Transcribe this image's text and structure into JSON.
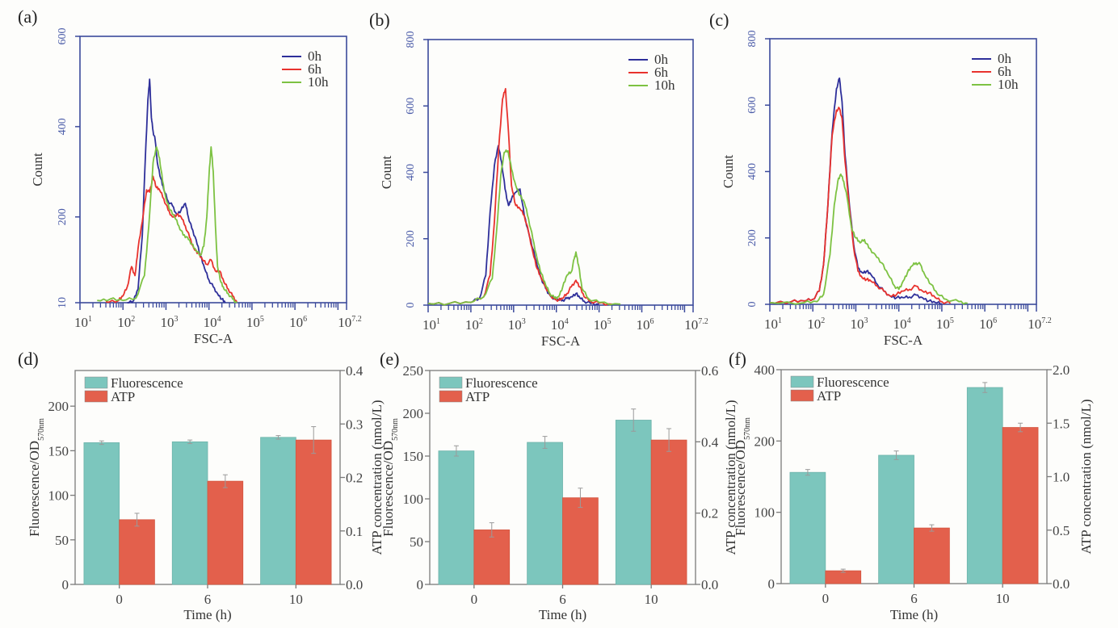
{
  "figure": {
    "panels": [
      "(a)",
      "(b)",
      "(c)",
      "(d)",
      "(e)",
      "(f)"
    ]
  },
  "chart_data": [
    {
      "id": "a",
      "label": "(a)",
      "type": "line",
      "xlabel": "FSC-A",
      "ylabel": "Count",
      "xscale": "log10",
      "xlim_log10": [
        1,
        7.2
      ],
      "xtick_labels": [
        "10^1",
        "10^2",
        "10^3",
        "10^4",
        "10^5",
        "10^6",
        "10^7.2"
      ],
      "ylim": [
        10,
        600
      ],
      "ytick_labels": [
        "10",
        "200",
        "400",
        "600"
      ],
      "yticks": [
        10,
        200,
        400,
        600
      ],
      "legend": [
        "0h",
        "6h",
        "10h"
      ],
      "legend_position": "top-right",
      "series": [
        {
          "name": "0h",
          "color": "#2e2f9a",
          "x_log10": [
            2.1,
            2.25,
            2.35,
            2.45,
            2.52,
            2.58,
            2.62,
            2.66,
            2.7,
            2.75,
            2.8,
            2.88,
            2.95,
            3.05,
            3.15,
            3.25,
            3.35,
            3.45,
            3.52,
            3.6,
            3.7,
            3.8,
            3.9,
            4.0,
            4.1,
            4.2,
            4.3,
            4.38
          ],
          "y": [
            10,
            15,
            40,
            160,
            330,
            460,
            505,
            420,
            390,
            370,
            320,
            285,
            260,
            235,
            225,
            205,
            215,
            230,
            200,
            175,
            150,
            115,
            85,
            60,
            45,
            30,
            18,
            10
          ]
        },
        {
          "name": "6h",
          "color": "#e8322d",
          "x_log10": [
            1.6,
            1.9,
            2.0,
            2.1,
            2.2,
            2.28,
            2.35,
            2.45,
            2.55,
            2.62,
            2.7,
            2.78,
            2.85,
            2.95,
            3.05,
            3.15,
            3.25,
            3.35,
            3.45,
            3.55,
            3.65,
            3.75,
            3.85,
            3.95,
            4.05,
            4.15,
            4.25,
            4.35,
            4.45,
            4.55,
            4.65
          ],
          "y": [
            12,
            15,
            25,
            45,
            90,
            70,
            130,
            190,
            260,
            255,
            290,
            265,
            260,
            240,
            215,
            200,
            205,
            200,
            180,
            155,
            130,
            120,
            105,
            95,
            105,
            80,
            80,
            55,
            40,
            25,
            12
          ]
        },
        {
          "name": "10h",
          "color": "#7dc242",
          "x_log10": [
            1.4,
            1.7,
            2.0,
            2.3,
            2.5,
            2.6,
            2.7,
            2.78,
            2.85,
            2.92,
            3.0,
            3.1,
            3.2,
            3.3,
            3.4,
            3.5,
            3.6,
            3.7,
            3.8,
            3.88,
            3.95,
            4.0,
            4.05,
            4.1,
            4.15,
            4.2,
            4.28,
            4.35,
            4.45,
            4.55,
            4.65
          ],
          "y": [
            15,
            18,
            15,
            20,
            70,
            180,
            320,
            355,
            330,
            280,
            240,
            215,
            200,
            180,
            160,
            155,
            140,
            125,
            115,
            135,
            200,
            290,
            355,
            300,
            180,
            90,
            55,
            40,
            30,
            18,
            10
          ]
        }
      ]
    },
    {
      "id": "b",
      "label": "(b)",
      "type": "line",
      "xlabel": "FSC-A",
      "ylabel": "Count",
      "xscale": "log10",
      "xlim_log10": [
        1,
        7.2
      ],
      "xtick_labels": [
        "10^1",
        "10^2",
        "10^3",
        "10^4",
        "10^5",
        "10^6",
        "10^7.2"
      ],
      "ylim": [
        0,
        800
      ],
      "ytick_labels": [
        "0",
        "200",
        "400",
        "600",
        "800"
      ],
      "yticks": [
        0,
        200,
        400,
        600,
        800
      ],
      "legend": [
        "0h",
        "6h",
        "10h"
      ],
      "legend_position": "top-right",
      "series": [
        {
          "name": "0h",
          "color": "#2e2f9a",
          "x_log10": [
            1.0,
            1.5,
            2.0,
            2.2,
            2.35,
            2.45,
            2.55,
            2.64,
            2.72,
            2.8,
            2.88,
            2.95,
            3.05,
            3.15,
            3.25,
            3.35,
            3.45,
            3.55,
            3.65,
            3.75,
            3.85,
            3.95,
            4.05,
            4.15,
            4.25,
            4.35,
            4.46,
            4.55,
            4.65,
            4.8,
            5.0
          ],
          "y": [
            5,
            5,
            8,
            20,
            90,
            280,
            420,
            480,
            430,
            350,
            300,
            320,
            340,
            350,
            270,
            220,
            170,
            120,
            80,
            50,
            30,
            20,
            15,
            15,
            20,
            25,
            35,
            22,
            12,
            5,
            3
          ]
        },
        {
          "name": "6h",
          "color": "#e8322d",
          "x_log10": [
            1.0,
            1.5,
            2.0,
            2.3,
            2.45,
            2.55,
            2.65,
            2.74,
            2.81,
            2.88,
            2.95,
            3.05,
            3.15,
            3.25,
            3.35,
            3.45,
            3.55,
            3.65,
            3.75,
            3.85,
            3.95,
            4.05,
            4.15,
            4.25,
            4.35,
            4.46,
            4.55,
            4.65,
            4.8,
            5.0,
            5.3
          ],
          "y": [
            5,
            5,
            8,
            25,
            90,
            250,
            470,
            620,
            652,
            520,
            360,
            300,
            290,
            270,
            220,
            160,
            110,
            80,
            55,
            30,
            20,
            15,
            20,
            35,
            55,
            75,
            55,
            25,
            12,
            6,
            3
          ]
        },
        {
          "name": "10h",
          "color": "#7dc242",
          "x_log10": [
            1.0,
            1.5,
            2.0,
            2.3,
            2.5,
            2.6,
            2.7,
            2.78,
            2.87,
            2.95,
            3.05,
            3.15,
            3.25,
            3.35,
            3.45,
            3.55,
            3.65,
            3.75,
            3.85,
            3.95,
            4.05,
            4.15,
            4.25,
            4.35,
            4.42,
            4.46,
            4.52,
            4.6,
            4.75,
            5.0,
            5.5
          ],
          "y": [
            5,
            5,
            8,
            25,
            80,
            220,
            390,
            460,
            465,
            410,
            360,
            330,
            310,
            260,
            200,
            140,
            95,
            60,
            35,
            22,
            25,
            55,
            90,
            100,
            140,
            160,
            120,
            50,
            20,
            8,
            3
          ]
        }
      ]
    },
    {
      "id": "c",
      "label": "(c)",
      "type": "line",
      "xlabel": "FSC-A",
      "ylabel": "Count",
      "xscale": "log10",
      "xlim_log10": [
        1,
        7.2
      ],
      "xtick_labels": [
        "10^1",
        "10^2",
        "10^3",
        "10^4",
        "10^5",
        "10^6",
        "10^7.2"
      ],
      "ylim": [
        0,
        800
      ],
      "ytick_labels": [
        "0",
        "200",
        "400",
        "600",
        "800"
      ],
      "yticks": [
        0,
        200,
        400,
        600,
        800
      ],
      "legend": [
        "0h",
        "6h",
        "10h"
      ],
      "legend_position": "top-right",
      "series": [
        {
          "name": "0h",
          "color": "#2e2f9a",
          "x_log10": [
            1.0,
            1.5,
            1.8,
            2.0,
            2.15,
            2.25,
            2.35,
            2.45,
            2.55,
            2.62,
            2.68,
            2.75,
            2.85,
            2.95,
            3.05,
            3.15,
            3.25,
            3.35,
            3.5,
            3.65,
            3.8,
            3.95,
            4.1,
            4.25,
            4.4,
            4.55,
            4.7,
            4.85,
            5.0
          ],
          "y": [
            5,
            8,
            10,
            15,
            40,
            120,
            300,
            520,
            650,
            681,
            610,
            450,
            300,
            180,
            110,
            95,
            100,
            90,
            60,
            40,
            25,
            20,
            20,
            22,
            28,
            20,
            10,
            5,
            2
          ]
        },
        {
          "name": "6h",
          "color": "#e8322d",
          "x_log10": [
            1.0,
            1.5,
            1.8,
            2.0,
            2.15,
            2.25,
            2.35,
            2.45,
            2.55,
            2.62,
            2.68,
            2.75,
            2.85,
            2.95,
            3.05,
            3.15,
            3.25,
            3.35,
            3.5,
            3.65,
            3.8,
            3.95,
            4.1,
            4.25,
            4.4,
            4.55,
            4.7,
            4.85,
            5.0,
            5.2
          ],
          "y": [
            5,
            8,
            10,
            15,
            40,
            120,
            300,
            510,
            585,
            590,
            560,
            430,
            290,
            170,
            100,
            80,
            75,
            70,
            55,
            40,
            25,
            30,
            40,
            45,
            55,
            40,
            35,
            20,
            8,
            3
          ]
        },
        {
          "name": "10h",
          "color": "#7dc242",
          "x_log10": [
            1.0,
            1.8,
            2.1,
            2.25,
            2.4,
            2.5,
            2.58,
            2.65,
            2.72,
            2.8,
            2.9,
            3.0,
            3.1,
            3.2,
            3.3,
            3.45,
            3.6,
            3.75,
            3.9,
            4.0,
            4.1,
            4.2,
            4.3,
            4.4,
            4.5,
            4.6,
            4.75,
            4.9,
            5.1,
            5.4,
            5.6
          ],
          "y": [
            5,
            5,
            8,
            30,
            150,
            300,
            370,
            392,
            370,
            320,
            230,
            200,
            185,
            195,
            170,
            150,
            125,
            90,
            55,
            45,
            70,
            95,
            115,
            125,
            120,
            90,
            60,
            30,
            15,
            8,
            3
          ]
        }
      ]
    },
    {
      "id": "d",
      "label": "(d)",
      "type": "bar",
      "xlabel": "Time (h)",
      "ylabel": "Fluorescence/OD",
      "ylabel_subscript": "570nm",
      "y2label": "ATP concentration (nmol/L)",
      "categories": [
        "0",
        "6",
        "10"
      ],
      "ylim": [
        0,
        240
      ],
      "ytick_labels": [
        "0",
        "50",
        "100",
        "150",
        "200"
      ],
      "yticks": [
        0,
        50,
        100,
        150,
        200
      ],
      "y2lim": [
        0,
        0.4
      ],
      "y2tick_labels": [
        "0.0",
        "0.1",
        "0.2",
        "0.3",
        "0.4"
      ],
      "y2ticks": [
        0,
        0.1,
        0.2,
        0.3,
        0.4
      ],
      "legend": [
        "Fluorescence",
        "ATP"
      ],
      "legend_position": "top-left",
      "series": [
        {
          "name": "Fluorescence",
          "axis": "left",
          "color": "#7cc6bd",
          "values": [
            159,
            160,
            165
          ],
          "errors": [
            2,
            2,
            2
          ]
        },
        {
          "name": "ATP",
          "axis": "right",
          "color": "#e3604c",
          "values": [
            0.121,
            0.193,
            0.27
          ],
          "errors": [
            0.012,
            0.012,
            0.025
          ]
        }
      ]
    },
    {
      "id": "e",
      "label": "(e)",
      "type": "bar",
      "xlabel": "Time (h)",
      "ylabel": "Fluorescence/OD",
      "ylabel_subscript": "570nm",
      "y2label": "ATP concentration (nmol/L)",
      "categories": [
        "0",
        "6",
        "10"
      ],
      "ylim": [
        0,
        250
      ],
      "ytick_labels": [
        "0",
        "50",
        "100",
        "150",
        "200",
        "250"
      ],
      "yticks": [
        0,
        50,
        100,
        150,
        200,
        250
      ],
      "y2lim": [
        0,
        0.6
      ],
      "y2tick_labels": [
        "0.0",
        "0.2",
        "0.4",
        "0.6"
      ],
      "y2ticks": [
        0,
        0.2,
        0.4,
        0.6
      ],
      "legend": [
        "Fluorescence",
        "ATP"
      ],
      "legend_position": "top-left",
      "series": [
        {
          "name": "Fluorescence",
          "axis": "left",
          "color": "#7cc6bd",
          "values": [
            156,
            166,
            192
          ],
          "errors": [
            6,
            7,
            13
          ]
        },
        {
          "name": "ATP",
          "axis": "right",
          "color": "#e3604c",
          "values": [
            0.153,
            0.243,
            0.405
          ],
          "errors": [
            0.02,
            0.027,
            0.032
          ]
        }
      ]
    },
    {
      "id": "f",
      "label": "(f)",
      "type": "bar",
      "xlabel": "Time (h)",
      "ylabel": "Fluorescence/OD",
      "ylabel_subscript": "570nm",
      "y2label": "ATP concentration (nmol/L)",
      "categories": [
        "0",
        "6",
        "10"
      ],
      "ylim": [
        0,
        400
      ],
      "y_axis_break": "0-200 linear over lower two thirds, 200-400 compressed over upper third",
      "ytick_labels": [
        "0",
        "100",
        "200",
        "400"
      ],
      "yticks": [
        0,
        100,
        200,
        400
      ],
      "y2lim": [
        0,
        2.0
      ],
      "y2tick_labels": [
        "0.0",
        "0.5",
        "1.0",
        "1.5",
        "2.0"
      ],
      "y2ticks": [
        0,
        0.5,
        1.0,
        1.5,
        2.0
      ],
      "legend": [
        "Fluorescence",
        "ATP"
      ],
      "legend_position": "top-left",
      "series": [
        {
          "name": "Fluorescence",
          "axis": "left",
          "color": "#7cc6bd",
          "values": [
            156,
            180,
            350
          ],
          "errors": [
            4,
            6,
            14
          ]
        },
        {
          "name": "ATP",
          "axis": "right",
          "color": "#e3604c",
          "values": [
            0.12,
            0.52,
            1.46
          ],
          "errors": [
            0.015,
            0.03,
            0.04
          ]
        }
      ]
    }
  ]
}
